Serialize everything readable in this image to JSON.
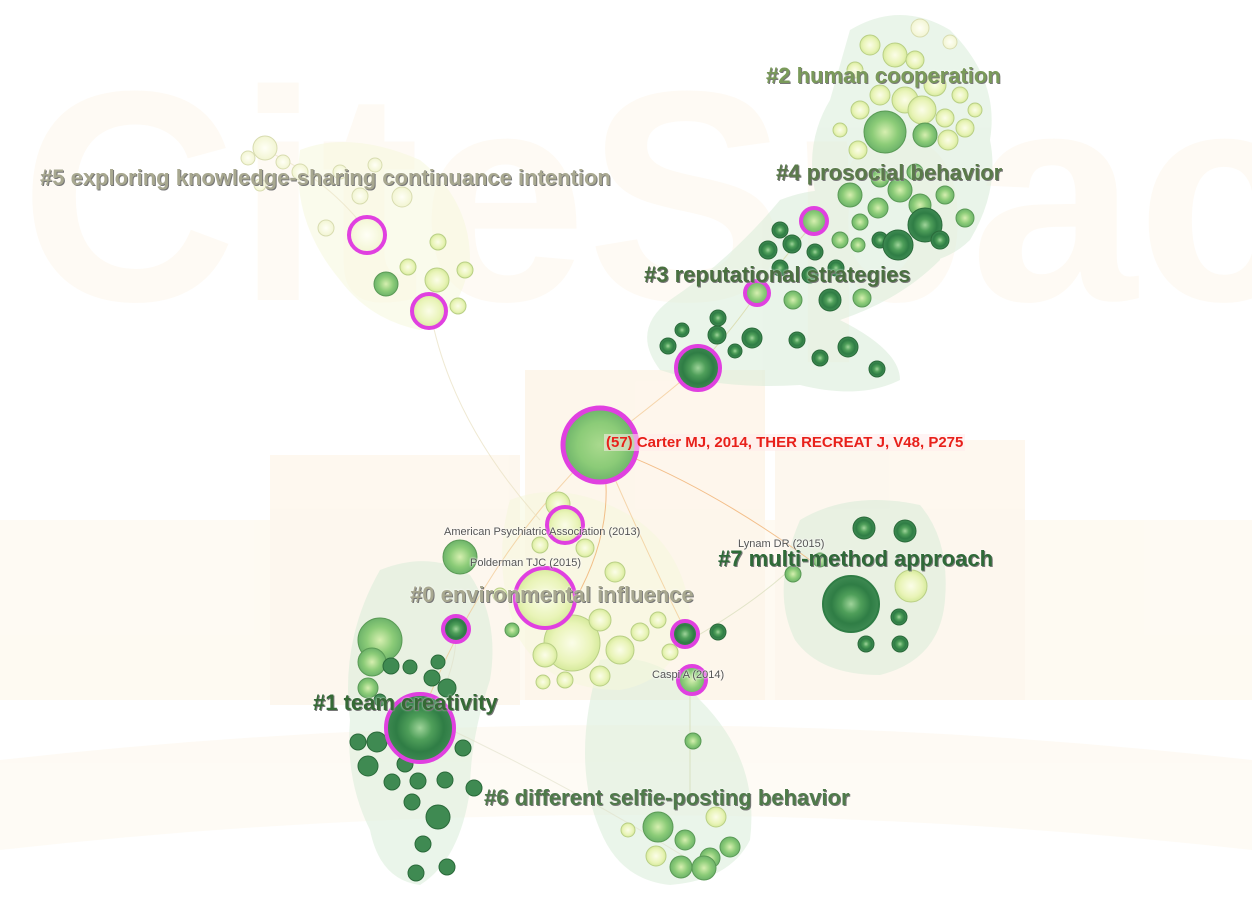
{
  "watermark_text": "CiteSpace",
  "highlight_label": "(57) Carter MJ, 2014, THER RECREAT J, V48, P275",
  "clusters": [
    {
      "key": "c2",
      "label": "#2 human cooperation",
      "color": "#7a9a5a"
    },
    {
      "key": "c5",
      "label": "#5 exploring knowledge-sharing continuance intention",
      "color": "#a8a890"
    },
    {
      "key": "c4",
      "label": "#4 prosocial behavior",
      "color": "#5a7a4a"
    },
    {
      "key": "c3",
      "label": "#3 reputational strategies",
      "color": "#4a7040"
    },
    {
      "key": "c7",
      "label": "#7 multi-method approach",
      "color": "#2f6a38"
    },
    {
      "key": "c0",
      "label": "#0 environmental influence",
      "color": "#a8a890"
    },
    {
      "key": "c1",
      "label": "#1 team creativity",
      "color": "#356a35"
    },
    {
      "key": "c6",
      "label": "#6 different selfie-posting behavior",
      "color": "#4f7a4a"
    }
  ],
  "node_labels": [
    {
      "key": "apa",
      "text": "American Psychiatric Association (2013)"
    },
    {
      "key": "polderman",
      "text": "Polderman TJC (2015)"
    },
    {
      "key": "lynam",
      "text": "Lynam DR (2015)"
    },
    {
      "key": "caspi",
      "text": "Caspi A (2014)"
    }
  ],
  "colors": {
    "burst_ring": "#e040e0",
    "highlight": "#e8201a",
    "cluster_hull": "#d8ecd8",
    "node_dark": "#2f7d45",
    "node_light": "#f2f7c8",
    "link": "#f0c080"
  }
}
